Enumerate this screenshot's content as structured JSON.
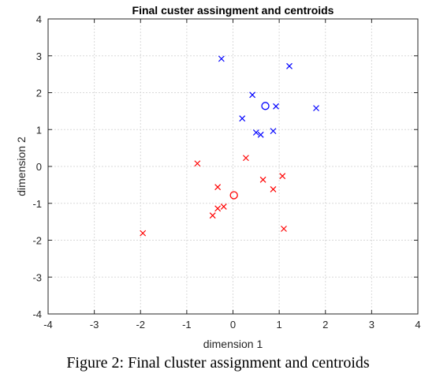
{
  "chart_data": {
    "type": "scatter",
    "title": "Final custer assingment and centroids",
    "xlabel": "dimension 1",
    "ylabel": "dimension 2",
    "xlim": [
      -4,
      4
    ],
    "ylim": [
      -4,
      4
    ],
    "xticks": [
      -4,
      -3,
      -2,
      -1,
      0,
      1,
      2,
      3,
      4
    ],
    "yticks": [
      -4,
      -3,
      -2,
      -1,
      0,
      1,
      2,
      3,
      4
    ],
    "grid": true,
    "series": [
      {
        "marker": "x",
        "color": "#0000ff",
        "points": [
          [
            -0.25,
            2.92
          ],
          [
            1.22,
            2.72
          ],
          [
            0.42,
            1.94
          ],
          [
            0.93,
            1.63
          ],
          [
            1.8,
            1.58
          ],
          [
            0.2,
            1.3
          ],
          [
            0.5,
            0.92
          ],
          [
            0.6,
            0.86
          ],
          [
            0.87,
            0.96
          ]
        ]
      },
      {
        "marker": "x",
        "color": "#ff0000",
        "points": [
          [
            -0.77,
            0.08
          ],
          [
            0.28,
            0.23
          ],
          [
            1.07,
            -0.26
          ],
          [
            0.65,
            -0.36
          ],
          [
            0.87,
            -0.62
          ],
          [
            -0.33,
            -0.56
          ],
          [
            -0.33,
            -1.14
          ],
          [
            -0.2,
            -1.09
          ],
          [
            -0.44,
            -1.33
          ],
          [
            1.1,
            -1.69
          ],
          [
            -1.95,
            -1.81
          ]
        ]
      },
      {
        "marker": "o",
        "color": "#0000ff",
        "points": [
          [
            0.7,
            1.64
          ]
        ]
      },
      {
        "marker": "o",
        "color": "#ff0000",
        "points": [
          [
            0.02,
            -0.78
          ]
        ]
      }
    ]
  },
  "caption": "Figure 2: Final cluster assignment and centroids"
}
